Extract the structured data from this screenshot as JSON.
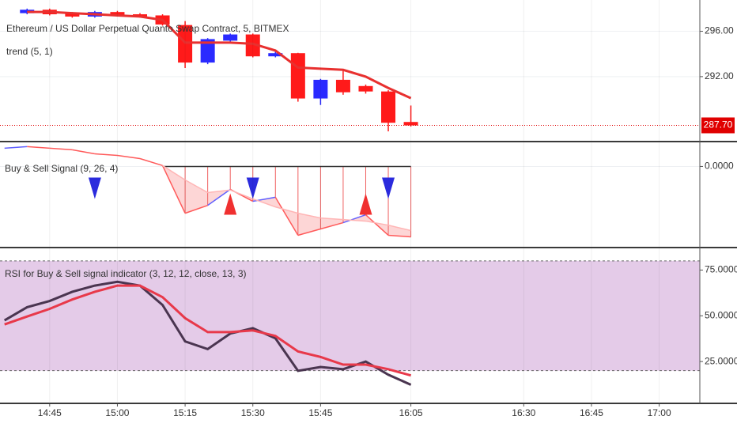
{
  "chart_data": [
    {
      "type": "candlestick",
      "title": "Ethereum / US Dollar Perpetual Quanto Swap Contract, 5, BITMEX",
      "x": [
        "14:40",
        "14:45",
        "14:50",
        "14:55",
        "15:00",
        "15:05",
        "15:10",
        "15:15",
        "15:20",
        "15:25",
        "15:30",
        "15:35",
        "15:40",
        "15:45",
        "15:50",
        "15:55",
        "16:00",
        "16:05"
      ],
      "open": [
        297.6,
        297.9,
        297.6,
        297.3,
        297.7,
        297.5,
        297.4,
        296.55,
        293.24,
        295.17,
        295.72,
        293.79,
        294.07,
        290.07,
        291.72,
        291.17,
        290.69,
        288.0
      ],
      "high": [
        298.0,
        298.0,
        297.7,
        297.8,
        297.8,
        297.6,
        297.5,
        296.9,
        295.4,
        295.8,
        295.8,
        294.2,
        294.1,
        291.8,
        292.55,
        291.3,
        290.8,
        289.45
      ],
      "low": [
        297.5,
        297.4,
        297.2,
        297.2,
        297.3,
        297.2,
        296.5,
        292.76,
        293.1,
        295.1,
        293.7,
        293.7,
        289.79,
        289.5,
        290.4,
        290.5,
        287.17,
        287.6
      ],
      "close": [
        297.9,
        297.5,
        297.3,
        297.7,
        297.4,
        297.3,
        296.6,
        293.24,
        295.31,
        295.72,
        293.79,
        294.07,
        290.07,
        291.72,
        290.62,
        290.69,
        287.93,
        287.7
      ],
      "up_color": "#2a2aff",
      "down_color": "#ff1a1a",
      "series": [
        {
          "name": "trend (5, 1)",
          "color": "#e8302f",
          "values": [
            297.7,
            297.7,
            297.6,
            297.5,
            297.4,
            297.3,
            297.0,
            295.0,
            295.0,
            295.0,
            294.9,
            294.3,
            292.8,
            292.7,
            292.6,
            292.0,
            291.0,
            290.1
          ]
        }
      ],
      "last_price": {
        "value": 287.7,
        "label": "287.70"
      },
      "last_price_color": "#e00000",
      "xlim": [
        "14:34",
        "17:09"
      ],
      "ylim": [
        286.34,
        298.62
      ],
      "yticks": [
        {
          "value": 296,
          "label": "296.00"
        },
        {
          "value": 292,
          "label": "292.00"
        }
      ],
      "grid": true
    },
    {
      "type": "line",
      "title": "Buy & Sell Signal (9, 26, 4)",
      "x": [
        "14:35",
        "14:40",
        "14:45",
        "14:50",
        "14:55",
        "15:00",
        "15:05",
        "15:10",
        "15:15",
        "15:20",
        "15:25",
        "15:30",
        "15:35",
        "15:40",
        "15:45",
        "15:50",
        "15:55",
        "16:00",
        "16:05"
      ],
      "series": [
        {
          "color_up": "#6060ff",
          "color_down": "#ff5a5a",
          "values": [
            0.81,
            0.88,
            0.81,
            0.74,
            0.56,
            0.49,
            0.35,
            0.04,
            -2.08,
            -1.73,
            -1.02,
            -1.55,
            -1.37,
            -3.06,
            -2.78,
            -2.5,
            -2.15,
            -3.06,
            -3.13
          ]
        },
        {
          "color": "#ffb5b5",
          "values": [
            null,
            null,
            null,
            null,
            null,
            null,
            null,
            0.04,
            -0.6,
            -1.16,
            -1.05,
            -1.44,
            -1.8,
            -2.08,
            -2.29,
            -2.36,
            -2.43,
            -2.61,
            -2.85
          ]
        }
      ],
      "fill_color": "#fdd6d6",
      "stems": true,
      "stem_color": "#f06060",
      "buy_signals": [
        "15:25",
        "15:55"
      ],
      "sell_signals": [
        "14:55",
        "15:30",
        "16:00"
      ],
      "buy_color": "#f03030",
      "sell_color": "#2b2bdd",
      "xlim": [
        "14:34",
        "17:09"
      ],
      "ylim": [
        -3.5,
        1
      ],
      "yticks": [
        {
          "value": 0,
          "label": "0.0000"
        }
      ],
      "grid": true
    },
    {
      "type": "line",
      "title": "RSI for Buy & Sell signal indicator (3, 12, 12, close, 13, 3)",
      "x": [
        "14:35",
        "14:40",
        "14:45",
        "14:50",
        "14:55",
        "15:00",
        "15:05",
        "15:10",
        "15:15",
        "15:20",
        "15:25",
        "15:30",
        "15:35",
        "15:40",
        "15:45",
        "15:50",
        "15:55",
        "16:00",
        "16:05"
      ],
      "series": [
        {
          "color": "#4a3550",
          "values": [
            47.5,
            54.7,
            58.1,
            63.1,
            66.5,
            68.6,
            66.5,
            55.9,
            36.0,
            31.8,
            40.3,
            43.2,
            37.7,
            19.9,
            22.0,
            20.8,
            25.0,
            17.8,
            12.3
          ]
        },
        {
          "color": "#e8394a",
          "values": [
            45.3,
            49.6,
            53.8,
            58.9,
            63.1,
            66.5,
            66.5,
            60.2,
            48.7,
            41.1,
            41.1,
            42.0,
            39.0,
            30.5,
            27.5,
            23.3,
            23.3,
            20.8,
            17.4
          ]
        }
      ],
      "band": [
        20,
        80
      ],
      "band_color": "#e4cbe8",
      "xlim": [
        "14:34",
        "17:09"
      ],
      "ylim": [
        3,
        86
      ],
      "yticks": [
        {
          "value": 75,
          "label": "75.0000"
        },
        {
          "value": 50,
          "label": "50.0000"
        },
        {
          "value": 25,
          "label": "25.0000"
        }
      ],
      "xticks": [
        "14:45",
        "15:00",
        "15:15",
        "15:30",
        "15:45",
        "16:05",
        "16:30",
        "16:45",
        "17:00"
      ],
      "grid": true
    }
  ]
}
